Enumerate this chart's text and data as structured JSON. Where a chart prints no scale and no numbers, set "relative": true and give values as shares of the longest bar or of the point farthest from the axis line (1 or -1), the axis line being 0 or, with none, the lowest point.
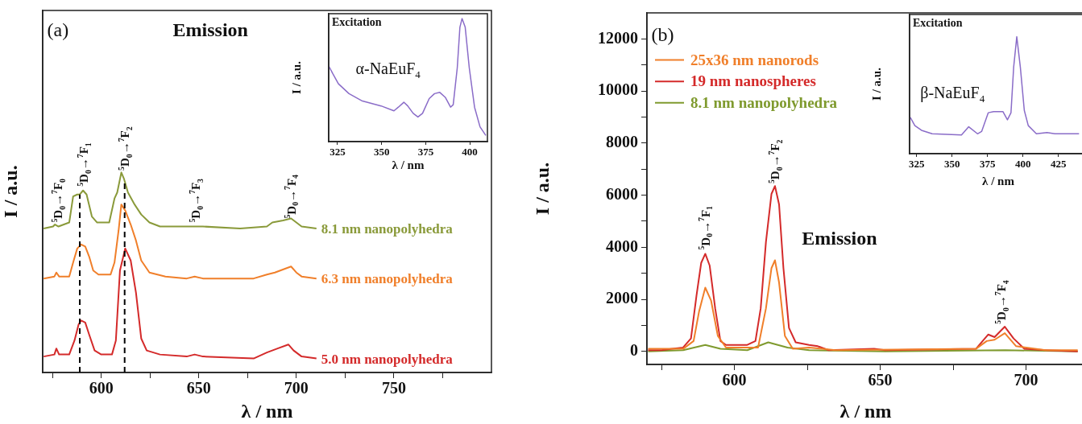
{
  "chart_data": [
    {
      "type": "line",
      "relative": true,
      "xlabel": "λ / nm",
      "ylabel": "I / a.u.",
      "xlim": [
        570,
        800
      ],
      "xticks": [
        {
          "value": 575,
          "label": null
        },
        600,
        {
          "value": 625,
          "label": null
        },
        650,
        {
          "value": 675,
          "label": null
        },
        700,
        {
          "value": 725,
          "label": null
        },
        750,
        {
          "value": 775,
          "label": null
        }
      ],
      "marker": "none",
      "legend": false,
      "series": [
        {
          "name": "8.1 nm nanopolyhedra",
          "color": "#8a9a3a",
          "x": [
            570.5,
            575.3,
            576.3,
            578.1,
            583.6,
            585.6,
            587.7,
            589.0,
            590.7,
            592.5,
            595.2,
            597.9,
            604.1,
            606.8,
            608.2,
            610.3,
            611.6,
            613.7,
            617.1,
            620.5,
            624.7,
            630.1,
            643.8,
            647.9,
            652.1,
            671.2,
            684.9,
            687.7,
            693.2,
            697.3,
            700.0,
            702.7,
            710.3
          ],
          "values": [
            0.72,
            0.73,
            0.74,
            0.73,
            0.75,
            0.88,
            0.89,
            0.89,
            0.91,
            0.89,
            0.78,
            0.75,
            0.75,
            0.87,
            0.9,
            1.0,
            0.97,
            0.9,
            0.84,
            0.79,
            0.75,
            0.73,
            0.73,
            0.73,
            0.73,
            0.72,
            0.73,
            0.75,
            0.76,
            0.77,
            0.75,
            0.73,
            0.72
          ]
        },
        {
          "name": "6.3 nm nanopolyhedra",
          "color": "#f07f2a",
          "x": [
            570.5,
            576.0,
            577.0,
            578.4,
            583.6,
            585.6,
            587.7,
            589.7,
            591.8,
            593.8,
            595.9,
            598.6,
            604.8,
            606.8,
            608.9,
            610.3,
            612.3,
            615.1,
            617.8,
            620.5,
            624.7,
            632.9,
            643.8,
            647.9,
            652.1,
            678.1,
            684.9,
            689.0,
            694.5,
            697.3,
            700.0,
            702.7,
            710.3
          ],
          "values": [
            0.47,
            0.48,
            0.5,
            0.48,
            0.48,
            0.55,
            0.62,
            0.64,
            0.63,
            0.58,
            0.51,
            0.49,
            0.49,
            0.55,
            0.71,
            0.84,
            0.81,
            0.74,
            0.66,
            0.56,
            0.5,
            0.48,
            0.47,
            0.48,
            0.47,
            0.47,
            0.49,
            0.5,
            0.52,
            0.53,
            0.5,
            0.48,
            0.47
          ]
        },
        {
          "name": "5.0 nm nanopolyhedra",
          "color": "#d42a2a",
          "x": [
            570.5,
            576.0,
            577.0,
            578.4,
            583.6,
            586.3,
            588.4,
            589.7,
            591.8,
            593.8,
            596.6,
            600.0,
            605.5,
            607.5,
            609.6,
            612.3,
            615.1,
            617.8,
            620.5,
            623.3,
            630.1,
            643.8,
            647.9,
            652.1,
            678.1,
            684.9,
            690.4,
            695.9,
            698.6,
            702.7,
            710.3
          ],
          "values": [
            0.08,
            0.09,
            0.12,
            0.09,
            0.09,
            0.16,
            0.24,
            0.26,
            0.25,
            0.19,
            0.11,
            0.09,
            0.09,
            0.16,
            0.51,
            0.62,
            0.56,
            0.4,
            0.17,
            0.11,
            0.09,
            0.08,
            0.09,
            0.08,
            0.07,
            0.1,
            0.12,
            0.14,
            0.11,
            0.08,
            0.07
          ]
        }
      ],
      "ref_lines": [
        {
          "axis": "x",
          "value": 589,
          "line_style": "dashed",
          "color": "#000000"
        },
        {
          "axis": "x",
          "value": 612,
          "line_style": "dashed",
          "color": "#000000"
        }
      ],
      "annotations": [
        "(a)",
        "Emission",
        {
          "text": "$^{5}$D$_{0}$→$^{7}$F$_{0}$",
          "x": 577.7,
          "y": 0.75
        },
        {
          "text": "$^{5}$D$_{0}$→$^{7}$F$_{1}$",
          "x": 591,
          "y": 0.93
        },
        {
          "text": "$^{5}$D$_{0}$→$^{7}$F$_{2}$",
          "x": 612,
          "y": 1.01
        },
        {
          "text": "$^{5}$D$_{0}$→$^{7}$F$_{3}$",
          "x": 648.4,
          "y": 0.75
        },
        {
          "text": "$^{5}$D$_{0}$→$^{7}$F$_{4}$",
          "x": 697.3,
          "y": 0.77
        }
      ]
    },
    {
      "type": "line",
      "relative": true,
      "title": "Excitation",
      "xlabel": "λ / nm",
      "ylabel": "I / a.u.",
      "xlim": [
        320,
        410
      ],
      "xticks": [
        325,
        350,
        375,
        400
      ],
      "marker": "none",
      "legend": false,
      "series": [
        {
          "color": "#8a6cc8",
          "x": [
            320.2,
            322.4,
            325.5,
            331.5,
            339.1,
            349.7,
            357,
            359.5,
            362.6,
            364.8,
            367.9,
            370.6,
            373.2,
            377,
            380,
            383,
            386.1,
            389.1,
            390.6,
            392.9,
            394.4,
            395.6,
            397.4,
            399.7,
            402.7,
            405.8,
            409.1
          ],
          "values": [
            0.61,
            0.55,
            0.47,
            0.39,
            0.33,
            0.29,
            0.25,
            0.28,
            0.32,
            0.29,
            0.23,
            0.2,
            0.23,
            0.35,
            0.39,
            0.4,
            0.36,
            0.28,
            0.3,
            0.6,
            0.93,
            1.0,
            0.93,
            0.6,
            0.28,
            0.12,
            0.05
          ]
        }
      ],
      "annotations": [
        "α-NaEuF$_{4}$"
      ]
    },
    {
      "type": "line",
      "xlabel": "λ / nm",
      "ylabel": "I / a.u.",
      "xlim": [
        570,
        720
      ],
      "ylim": [
        -500,
        13000
      ],
      "xticks": [
        {
          "value": 575,
          "label": null
        },
        600,
        {
          "value": 625,
          "label": null
        },
        650,
        {
          "value": 675,
          "label": null
        },
        700
      ],
      "yticks": [
        0,
        {
          "value": 1000,
          "label": null
        },
        2000,
        {
          "value": 3000,
          "label": null
        },
        4000,
        {
          "value": 5000,
          "label": null
        },
        6000,
        {
          "value": 7000,
          "label": null
        },
        8000,
        {
          "value": 9000,
          "label": null
        },
        10000,
        {
          "value": 11000,
          "label": null
        },
        12000
      ],
      "marker": "none",
      "legend": "top left",
      "series": [
        {
          "name": "25x36 nm nanorods",
          "color": "#f07f2a",
          "x": [
            570.4,
            582.4,
            586,
            587.9,
            590,
            592,
            594.3,
            597.1,
            608.1,
            610.8,
            612.7,
            613.9,
            615.3,
            617.3,
            620,
            625.6,
            634.7,
            682.8,
            686.5,
            689.2,
            692.7,
            696.6,
            706.7,
            717.7
          ],
          "values": [
            100,
            100,
            400,
            1550,
            2450,
            1950,
            600,
            150,
            150,
            1650,
            3200,
            3500,
            2650,
            600,
            100,
            150,
            50,
            100,
            400,
            450,
            700,
            200,
            50,
            50
          ]
        },
        {
          "name": "19 nm nanospheres",
          "color": "#d42a2a",
          "x": [
            570.4,
            575,
            578.7,
            582.4,
            585.1,
            587,
            588.6,
            590,
            591.5,
            593.4,
            595.2,
            597.1,
            604.4,
            607.2,
            609,
            610.8,
            612.7,
            613.9,
            615.3,
            616.8,
            618.7,
            621,
            625.6,
            628.6,
            632.3,
            647.9,
            651.6,
            682.8,
            685.1,
            687,
            689.2,
            692.7,
            695.7,
            699.4,
            706.7,
            717.7
          ],
          "values": [
            50,
            50,
            100,
            150,
            500,
            2150,
            3400,
            3750,
            3300,
            1650,
            400,
            250,
            250,
            400,
            1650,
            4200,
            6050,
            6350,
            5650,
            3200,
            900,
            350,
            250,
            200,
            50,
            100,
            50,
            100,
            400,
            650,
            550,
            950,
            500,
            100,
            50,
            0
          ]
        },
        {
          "name": "8.1 nm nanopolyhedra",
          "color": "#7f9a2e",
          "x": [
            570.4,
            582.4,
            590,
            595.2,
            604.4,
            611.6,
            618.2,
            625.6,
            651.6,
            692.9,
            717.7
          ],
          "values": [
            0,
            50,
            250,
            100,
            50,
            350,
            150,
            50,
            0,
            50,
            0
          ]
        }
      ],
      "annotations": [
        "(b)",
        "Emission",
        {
          "text": "$^{5}$D$_{0}$→$^{7}$F$_{1}$",
          "x": 590,
          "y": 3900
        },
        {
          "text": "$^{5}$D$_{0}$→$^{7}$F$_{2}$",
          "x": 613.9,
          "y": 6450
        },
        {
          "text": "$^{5}$D$_{0}$→$^{7}$F$_{4}$",
          "x": 691.5,
          "y": 1050
        }
      ]
    },
    {
      "type": "line",
      "relative": true,
      "title": "Excitation",
      "xlabel": "λ / nm",
      "ylabel": "I / a.u.",
      "xlim": [
        320,
        445
      ],
      "xticks": [
        325,
        350,
        375,
        400,
        425
      ],
      "marker": "none",
      "legend": false,
      "series": [
        {
          "color": "#8a6cc8",
          "x": [
            320.5,
            323.7,
            328.4,
            335.9,
            356.6,
            361.7,
            367.9,
            370.8,
            375.5,
            379.2,
            385.8,
            389,
            391.5,
            393.4,
            395.6,
            398.1,
            400.9,
            403.7,
            409.4,
            416.9,
            422.5,
            439.5
          ],
          "values": [
            0.31,
            0.24,
            0.2,
            0.17,
            0.16,
            0.23,
            0.17,
            0.19,
            0.35,
            0.36,
            0.36,
            0.29,
            0.35,
            0.74,
            1.0,
            0.74,
            0.37,
            0.24,
            0.17,
            0.18,
            0.17,
            0.17
          ]
        }
      ],
      "annotations": [
        "β-NaEuF$_{4}$"
      ]
    }
  ]
}
